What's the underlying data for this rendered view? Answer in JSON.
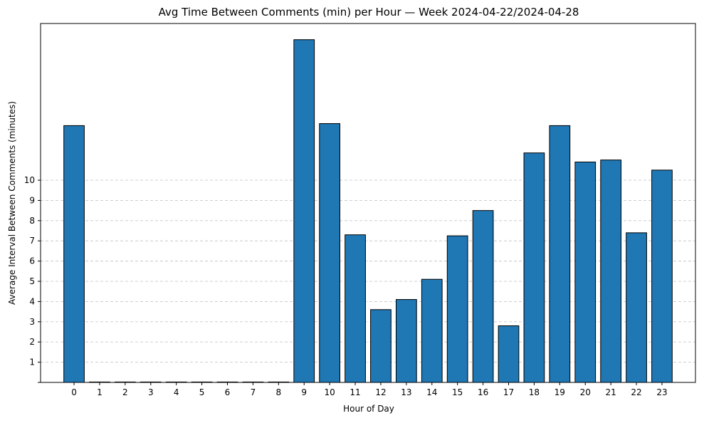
{
  "colors": {
    "bar_fill": "#1f77b4",
    "bar_edge": "#000000",
    "grid": "#c8c8c8",
    "axis": "#000000",
    "background": "#ffffff"
  },
  "chart_data": {
    "type": "bar",
    "title": "Avg Time Between Comments (min) per Hour — Week 2024-04-22/2024-04-28",
    "xlabel": "Hour of Day",
    "ylabel": "Average Interval Between Comments (minutes)",
    "categories": [
      "0",
      "1",
      "2",
      "3",
      "4",
      "5",
      "6",
      "7",
      "8",
      "9",
      "10",
      "11",
      "12",
      "13",
      "14",
      "15",
      "16",
      "17",
      "18",
      "19",
      "20",
      "21",
      "22",
      "23"
    ],
    "values": [
      12.7,
      0,
      0,
      0,
      0,
      0,
      0,
      0,
      0,
      16.95,
      12.8,
      7.3,
      3.6,
      4.1,
      5.1,
      7.25,
      8.5,
      2.8,
      11.35,
      12.7,
      10.9,
      11.0,
      7.4,
      10.5
    ],
    "ylim": [
      0,
      17.75
    ],
    "yticks": [
      1,
      2,
      3,
      4,
      5,
      6,
      7,
      8,
      9,
      10
    ],
    "grid": "y-dashed",
    "legend": "none"
  }
}
